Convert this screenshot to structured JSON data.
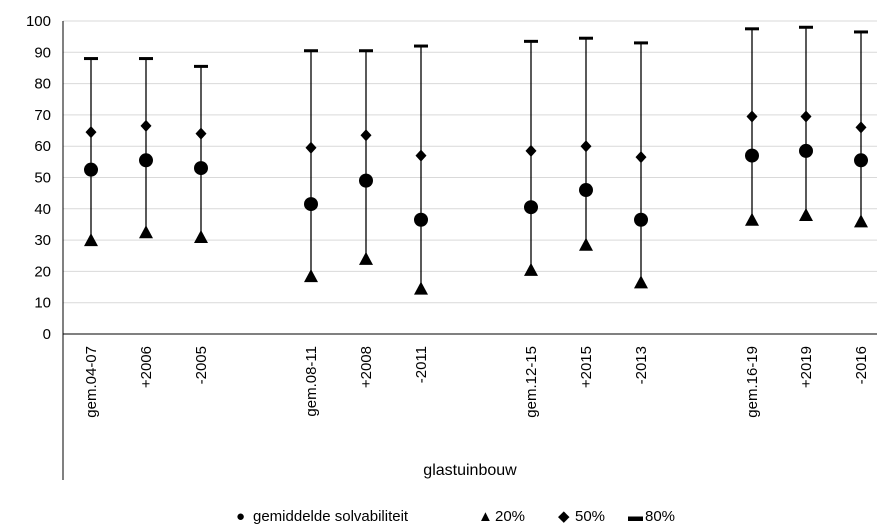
{
  "chart_data": {
    "type": "scatter",
    "title": "",
    "xlabel": "glastuinbouw",
    "ylabel": "",
    "ylim": [
      0,
      100
    ],
    "yticks": [
      0,
      10,
      20,
      30,
      40,
      50,
      60,
      70,
      80,
      90,
      100
    ],
    "grid": true,
    "legend_position": "bottom",
    "categories": [
      "gem.04-07",
      "+2006",
      "-2005",
      "gem.08-11",
      "+2008",
      "-2011",
      "gem.12-15",
      "+2015",
      "-2013",
      "gem.16-19",
      "+2019",
      "-2016"
    ],
    "group_label": "glastuinbouw",
    "series": [
      {
        "name": "gemiddelde solvabiliteit",
        "marker": "circle",
        "values": [
          52.5,
          55.5,
          53,
          41.5,
          49,
          36.5,
          40.5,
          46,
          36.5,
          57,
          58.5,
          55.5
        ]
      },
      {
        "name": "20%",
        "marker": "triangle",
        "values": [
          30,
          32.5,
          31,
          18.5,
          24,
          14.5,
          20.5,
          28.5,
          16.5,
          36.5,
          38,
          36
        ]
      },
      {
        "name": "50%",
        "marker": "diamond",
        "values": [
          64.5,
          66.5,
          64,
          59.5,
          63.5,
          57,
          58.5,
          60,
          56.5,
          69.5,
          69.5,
          66
        ]
      },
      {
        "name": "80%",
        "marker": "dash",
        "values": [
          88,
          88,
          85.5,
          90.5,
          90.5,
          92,
          93.5,
          94.5,
          93,
          97.5,
          98,
          96.5
        ]
      }
    ]
  },
  "legend_symbols": [
    "●",
    "▲",
    "◆",
    "▬"
  ]
}
